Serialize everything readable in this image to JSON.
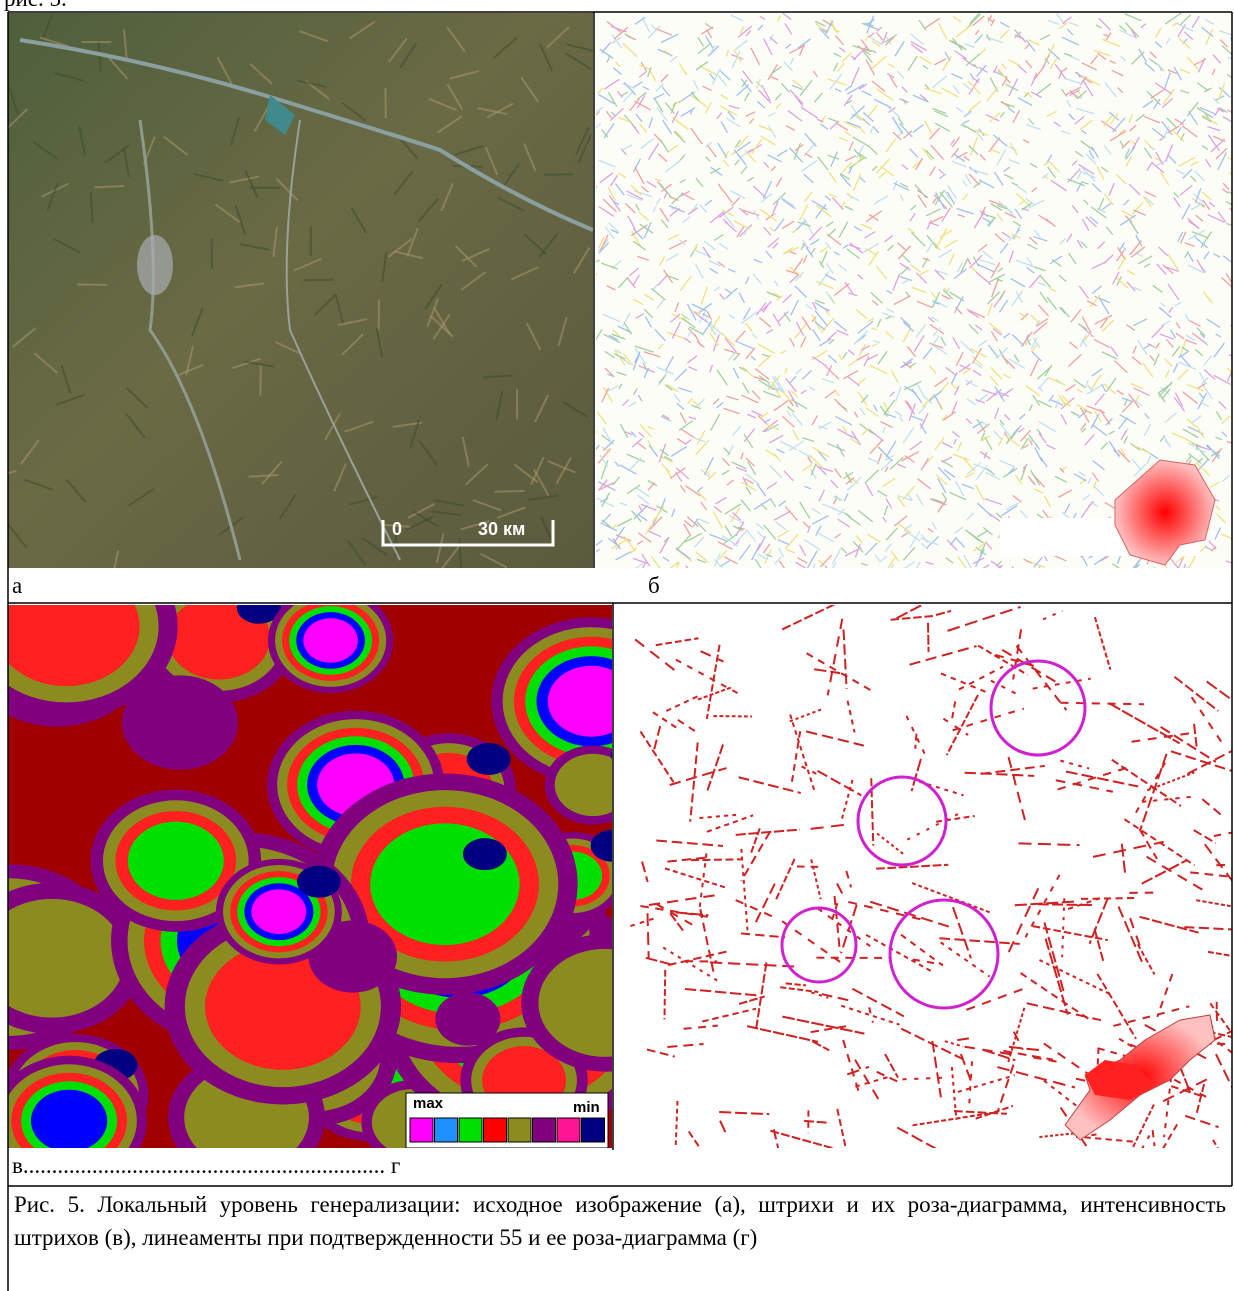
{
  "header": {
    "text": "рис. 5."
  },
  "panels": [
    {
      "label": "а",
      "scale_bar": {
        "start": "0",
        "end": "30 км"
      }
    },
    {
      "label": "б"
    },
    {
      "legend": {
        "max": "max",
        "min": "min"
      }
    }
  ],
  "bottom_labels": "в............................................................... г",
  "caption": "Рис. 5. Локальный уровень генерализации: исходное изображение (а), штрихи и их роза-диаграмма, интенсивность штрихов (в), линеаменты при подтвержденности 55 и ее роза-диаграмма (г)"
}
